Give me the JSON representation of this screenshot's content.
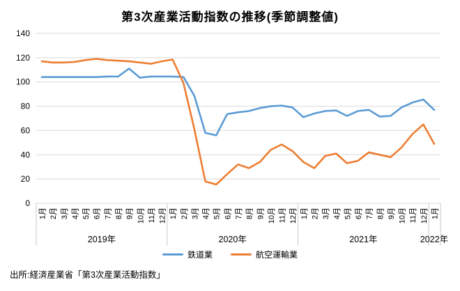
{
  "title": "第3次産業活動指数の推移(季節調整値)",
  "source": "出所:経済産業省「第3次産業活動指数」",
  "colors": {
    "rail": "#5B9BD5",
    "air": "#ED7D31",
    "grid": "#D9D9D9",
    "separator": "#C9C9C9",
    "text": "#000000",
    "background": "#FFFFFF"
  },
  "chart_data": {
    "type": "line",
    "title": "第3次産業活動指数の推移(季節調整値)",
    "xlabel": "",
    "ylabel": "",
    "ylim": [
      0,
      140
    ],
    "yticks": [
      0,
      20,
      40,
      60,
      80,
      100,
      120,
      140
    ],
    "grid": true,
    "legend_position": "bottom",
    "x_months": [
      "1月",
      "2月",
      "3月",
      "4月",
      "5月",
      "6月",
      "7月",
      "8月",
      "9月",
      "10月",
      "11月",
      "12月",
      "1月",
      "2月",
      "3月",
      "4月",
      "5月",
      "6月",
      "7月",
      "8月",
      "9月",
      "10月",
      "11月",
      "12月",
      "1月",
      "2月",
      "3月",
      "4月",
      "5月",
      "6月",
      "7月",
      "8月",
      "9月",
      "10月",
      "11月",
      "12月",
      "1月"
    ],
    "year_groups": [
      {
        "label": "2019年",
        "count": 12
      },
      {
        "label": "2020年",
        "count": 12
      },
      {
        "label": "2021年",
        "count": 12
      },
      {
        "label": "2022年",
        "count": 1
      }
    ],
    "series": [
      {
        "name": "鉄道業",
        "color": "#5B9BD5",
        "values": [
          104,
          104,
          104,
          104,
          104,
          104,
          104.5,
          104.5,
          111,
          103.5,
          104.5,
          104.5,
          104.5,
          104,
          88.5,
          58,
          56,
          73.5,
          75,
          76,
          78.5,
          80,
          80.5,
          79,
          71,
          74,
          76,
          76.5,
          72,
          76,
          77,
          71.5,
          72,
          79,
          83,
          85.5,
          77
        ]
      },
      {
        "name": "航空運輸業",
        "color": "#ED7D31",
        "values": [
          117,
          116,
          116,
          116.5,
          118,
          119,
          118,
          117.5,
          117,
          116,
          115,
          117,
          118.5,
          99,
          61,
          18,
          15.5,
          24,
          32,
          29,
          34,
          44,
          48.5,
          43,
          34,
          29,
          39,
          41,
          33,
          35,
          42,
          40,
          38,
          46,
          57,
          65,
          49
        ]
      }
    ]
  }
}
